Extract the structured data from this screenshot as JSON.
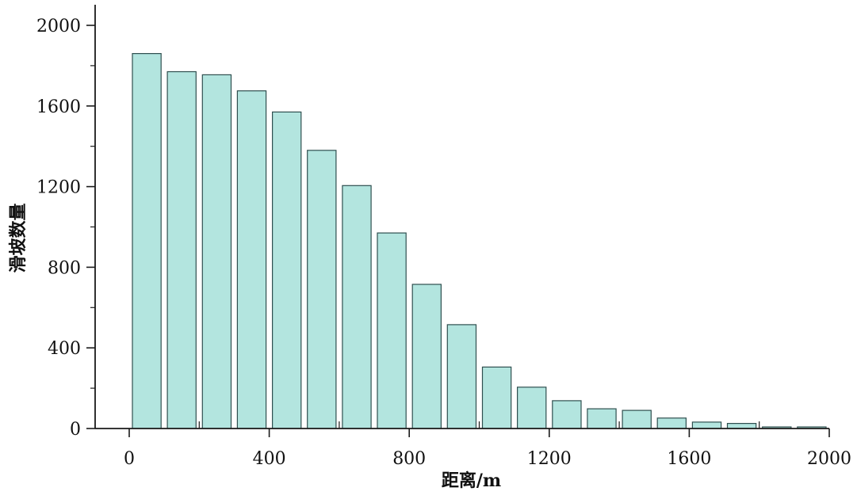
{
  "chart_data": {
    "type": "bar",
    "xlabel": "距离/m",
    "ylabel": "滑坡数量",
    "xlim": [
      0,
      2000
    ],
    "ylim": [
      0,
      2000
    ],
    "x_ticks": [
      0,
      400,
      800,
      1200,
      1600,
      2000
    ],
    "x_ticks_minor": [
      200,
      600,
      1000,
      1400,
      1800
    ],
    "y_ticks": [
      0,
      400,
      800,
      1200,
      1600,
      2000
    ],
    "y_ticks_minor": [
      200,
      600,
      1000,
      1400,
      1800
    ],
    "bin_width": 100,
    "bins": [
      {
        "x0": 0,
        "x1": 100,
        "value": 1860
      },
      {
        "x0": 100,
        "x1": 200,
        "value": 1770
      },
      {
        "x0": 200,
        "x1": 300,
        "value": 1755
      },
      {
        "x0": 300,
        "x1": 400,
        "value": 1675
      },
      {
        "x0": 400,
        "x1": 500,
        "value": 1570
      },
      {
        "x0": 500,
        "x1": 600,
        "value": 1380
      },
      {
        "x0": 600,
        "x1": 700,
        "value": 1205
      },
      {
        "x0": 700,
        "x1": 800,
        "value": 970
      },
      {
        "x0": 800,
        "x1": 900,
        "value": 715
      },
      {
        "x0": 900,
        "x1": 1000,
        "value": 515
      },
      {
        "x0": 1000,
        "x1": 1100,
        "value": 305
      },
      {
        "x0": 1100,
        "x1": 1200,
        "value": 205
      },
      {
        "x0": 1200,
        "x1": 1300,
        "value": 138
      },
      {
        "x0": 1300,
        "x1": 1400,
        "value": 98
      },
      {
        "x0": 1400,
        "x1": 1500,
        "value": 90
      },
      {
        "x0": 1500,
        "x1": 1600,
        "value": 52
      },
      {
        "x0": 1600,
        "x1": 1700,
        "value": 32
      },
      {
        "x0": 1700,
        "x1": 1800,
        "value": 25
      },
      {
        "x0": 1800,
        "x1": 1900,
        "value": 8
      },
      {
        "x0": 1900,
        "x1": 2000,
        "value": 8
      }
    ],
    "colors": {
      "bar_fill": "#b3e5df",
      "bar_stroke": "#2f4f4f",
      "axis": "#1a1a1a"
    },
    "grid": false,
    "legend": "none"
  }
}
